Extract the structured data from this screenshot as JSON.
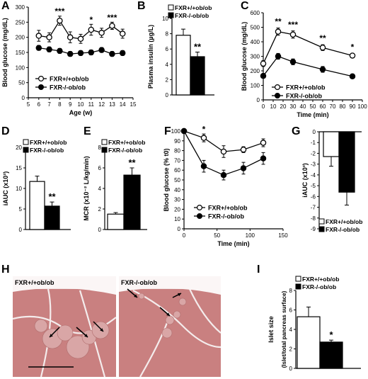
{
  "colors": {
    "open": "#ffffff",
    "filled": "#000000",
    "tissue": "#c98080",
    "tissue_bg": "#f2e6e6"
  },
  "legend": {
    "plus": "FXR+/+ob/ob",
    "minus": "FXR-/-ob/ob"
  },
  "chart_data": [
    {
      "panel": "A",
      "type": "line",
      "xlabel": "Age (w)",
      "ylabel": "Blood glucose (mg/dL)",
      "xlim": [
        5,
        15
      ],
      "ylim": [
        0,
        300
      ],
      "xticks": [
        "5",
        "6",
        "7",
        "8",
        "9",
        "10",
        "11",
        "12",
        "13",
        "14",
        "15"
      ],
      "yticks": [
        "0",
        "50",
        "100",
        "150",
        "200",
        "250",
        "300"
      ],
      "x": [
        6,
        7,
        8,
        9,
        10,
        11,
        12,
        13,
        14
      ],
      "series": [
        {
          "name": "FXR+/+ob/ob",
          "marker": "open",
          "values": [
            205,
            200,
            255,
            200,
            195,
            225,
            215,
            238,
            212
          ],
          "errors": [
            18,
            15,
            15,
            18,
            15,
            18,
            15,
            12,
            15
          ]
        },
        {
          "name": "FXR-/-ob/ob",
          "marker": "filled",
          "values": [
            165,
            160,
            155,
            145,
            148,
            150,
            158,
            145,
            148
          ],
          "errors": [
            8,
            8,
            8,
            8,
            8,
            8,
            8,
            8,
            8
          ]
        }
      ],
      "annotations": [
        {
          "x": 8,
          "y": 276,
          "text": "***"
        },
        {
          "x": 11,
          "y": 248,
          "text": "*"
        },
        {
          "x": 13,
          "y": 255,
          "text": "***"
        }
      ]
    },
    {
      "panel": "B",
      "type": "bar",
      "ylabel": "Plasma insulin (µg/L)",
      "ylim": [
        0,
        10
      ],
      "yticks": [
        "0",
        "2",
        "4",
        "6",
        "8",
        "10"
      ],
      "values": [
        7.8,
        5.0
      ],
      "errors": [
        0.8,
        0.6
      ],
      "series_names": [
        "FXR+/+ob/ob",
        "FXR-/-ob/ob"
      ],
      "annotations": [
        {
          "bar": 1,
          "text": "**"
        }
      ]
    },
    {
      "panel": "C",
      "type": "line",
      "xlabel": "Time (min)",
      "ylabel": "Blood glucose (mg/dL)",
      "xlim": [
        0,
        100
      ],
      "ylim": [
        0,
        600
      ],
      "xticks": [
        "0",
        "10",
        "20",
        "30",
        "40",
        "50",
        "60",
        "70",
        "80",
        "90",
        "100"
      ],
      "yticks": [
        "0",
        "100",
        "200",
        "300",
        "400",
        "500",
        "600"
      ],
      "x": [
        0,
        15,
        30,
        60,
        90
      ],
      "series": [
        {
          "name": "FXR+/+ob/ob",
          "marker": "open",
          "values": [
            250,
            470,
            450,
            360,
            305
          ],
          "errors": [
            20,
            25,
            25,
            20,
            15
          ]
        },
        {
          "name": "FXR-/-ob/ob",
          "marker": "filled",
          "values": [
            165,
            300,
            262,
            210,
            162
          ],
          "errors": [
            15,
            20,
            20,
            20,
            15
          ]
        }
      ],
      "annotations": [
        {
          "x": 15,
          "y": 520,
          "text": "**"
        },
        {
          "x": 30,
          "y": 498,
          "text": "***"
        },
        {
          "x": 60,
          "y": 405,
          "text": "**"
        },
        {
          "x": 90,
          "y": 345,
          "text": "*"
        }
      ]
    },
    {
      "panel": "D",
      "type": "bar",
      "ylabel": "iAUC (x10³)",
      "ylim": [
        0,
        20
      ],
      "yticks": [
        "0",
        "5",
        "10",
        "15",
        "20"
      ],
      "values": [
        11.7,
        5.7
      ],
      "errors": [
        1.3,
        1.0
      ],
      "series_names": [
        "FXR+/+ob/ob",
        "FXR-/-ob/ob"
      ],
      "annotations": [
        {
          "bar": 1,
          "text": "**"
        }
      ]
    },
    {
      "panel": "E",
      "type": "bar",
      "ylabel": "MCR (x10⁻² L/kg/min)",
      "ylim": [
        0,
        8
      ],
      "yticks": [
        "0",
        "2",
        "4",
        "6",
        "8"
      ],
      "values": [
        1.5,
        5.3
      ],
      "errors": [
        0.15,
        0.7
      ],
      "series_names": [
        "FXR+/+ob/ob",
        "FXR-/-ob/ob"
      ],
      "annotations": [
        {
          "bar": 1,
          "text": "**"
        }
      ]
    },
    {
      "panel": "F",
      "type": "line",
      "xlabel": "Time (min)",
      "ylabel": "Blood glucose (% t0)",
      "xlim": [
        0,
        150
      ],
      "ylim": [
        0,
        100
      ],
      "xticks": [
        "0",
        "50",
        "100",
        "150"
      ],
      "yticks": [
        "0",
        "10",
        "20",
        "30",
        "40",
        "50",
        "60",
        "70",
        "80",
        "90",
        "100"
      ],
      "x": [
        0,
        30,
        60,
        90,
        120
      ],
      "series": [
        {
          "name": "FXR+/+ob/ob",
          "marker": "open",
          "values": [
            100,
            93,
            79,
            81,
            88
          ],
          "errors": [
            0,
            4,
            6,
            3,
            4
          ]
        },
        {
          "name": "FXR-/-ob/ob",
          "marker": "filled",
          "values": [
            100,
            64,
            55,
            62,
            72
          ],
          "errors": [
            0,
            6,
            5,
            6,
            6
          ]
        }
      ],
      "annotations": [
        {
          "x": 30,
          "y": 99,
          "text": "*"
        }
      ]
    },
    {
      "panel": "G",
      "type": "bar",
      "ylabel": "iAUC (x10³)",
      "ylim": [
        -9,
        0
      ],
      "yticks": [
        "0",
        "-1",
        "-2",
        "-3",
        "-4",
        "-5",
        "-6",
        "-7",
        "-8",
        "-9"
      ],
      "values": [
        -2.3,
        -5.6
      ],
      "errors": [
        0.9,
        1.2
      ],
      "series_names": [
        "FXR+/+ob/ob",
        "FXR-/-ob/ob"
      ]
    },
    {
      "panel": "H",
      "type": "image",
      "labels": [
        "FXR+/+ob/ob",
        "FXR-/-ob/ob"
      ]
    },
    {
      "panel": "I",
      "type": "bar",
      "ylabel": "Islet size",
      "ylabel2": "(Islet/total pancreas surface)",
      "ylim": [
        0,
        8
      ],
      "yticks": [
        "0",
        "2",
        "4",
        "6",
        "8"
      ],
      "values": [
        5.3,
        2.7
      ],
      "errors": [
        1.0,
        0.2
      ],
      "series_names": [
        "FXR+/+ob/ob",
        "FXR-/-ob/ob"
      ],
      "annotations": [
        {
          "bar": 1,
          "text": "*"
        }
      ]
    }
  ]
}
